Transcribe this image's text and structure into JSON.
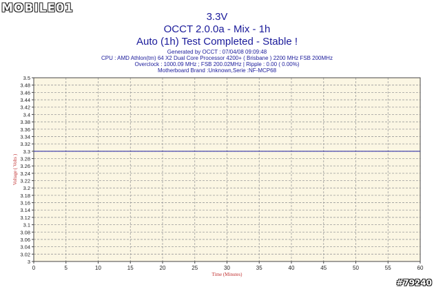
{
  "watermark": {
    "logo": "MOBILE01",
    "id": "#79240"
  },
  "header": {
    "title_voltage": "3.3V",
    "title_app": "OCCT 2.0.0a - Mix - 1h",
    "title_status": "Auto (1h) Test Completed - Stable !",
    "generated": "Generated by OCCT : 07/04/08 09:09:48",
    "cpu": "CPU : AMD Athlon(tm) 64 X2 Dual Core Processor 4200+ ( Brisbane ) 2200 MHz FSB 200MHz",
    "overclock": "Overclock : 1000.09 MHz ; FSB 200.02MHz | Ripple : 0.00 ( 0.00%)",
    "motherboard": "Motherboard Brand :Unknown,Serie :NF-MCP68"
  },
  "colors": {
    "plot_bg": "#fbf6e3",
    "grid": "#9a9a9a",
    "series": "#3333aa",
    "axis_label": "#c03030",
    "title": "#1a1a9a"
  },
  "chart_data": {
    "type": "line",
    "xlabel": "Time (Minutes)",
    "ylabel": "Voltage ( Volts )",
    "xlim": [
      0,
      60
    ],
    "ylim": [
      3,
      3.5
    ],
    "x_ticks": [
      0,
      5,
      10,
      15,
      20,
      25,
      30,
      35,
      40,
      45,
      50,
      55,
      60
    ],
    "y_ticks": [
      "3",
      "3.02",
      "3.04",
      "3.06",
      "3.08",
      "3.1",
      "3.12",
      "3.14",
      "3.16",
      "3.18",
      "3.2",
      "3.22",
      "3.24",
      "3.26",
      "3.28",
      "3.3",
      "3.32",
      "3.34",
      "3.36",
      "3.38",
      "3.4",
      "3.42",
      "3.44",
      "3.46",
      "3.48",
      "3.5"
    ],
    "grid": true,
    "series": [
      {
        "x": [
          0,
          60
        ],
        "values": [
          3.3,
          3.3
        ]
      }
    ]
  }
}
